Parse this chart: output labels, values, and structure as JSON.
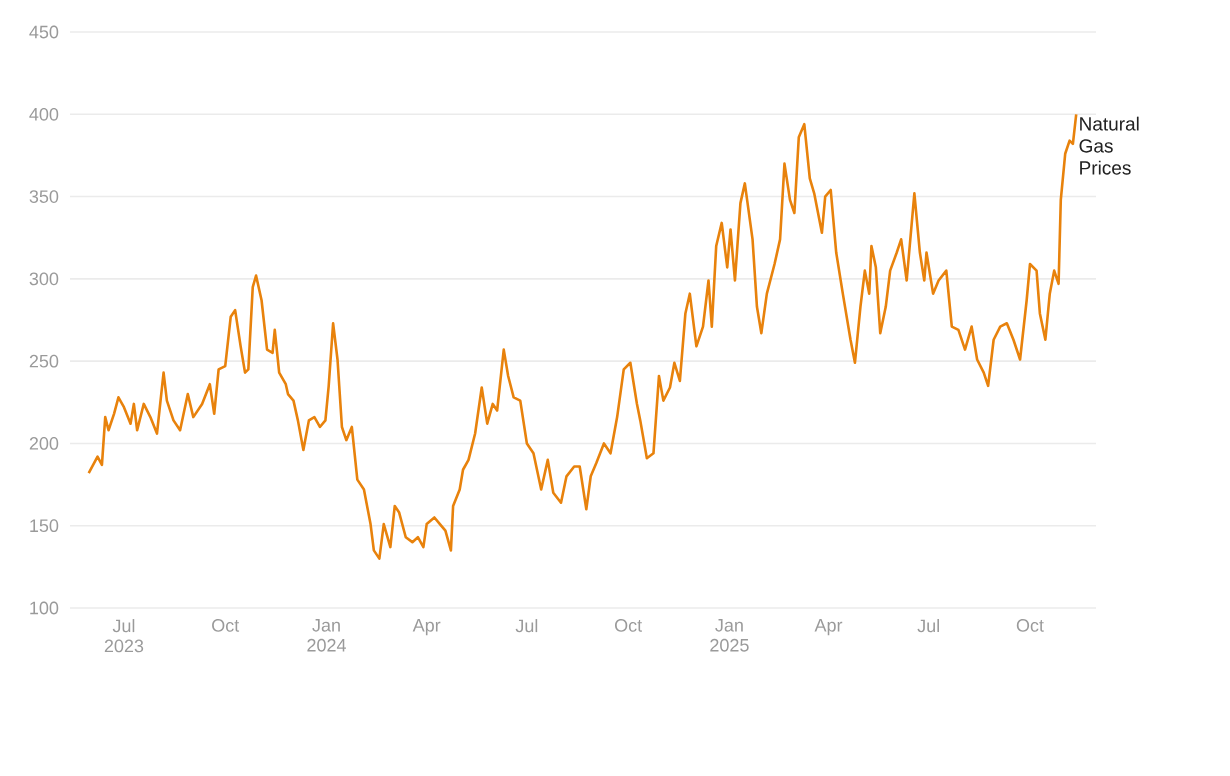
{
  "chart_data": {
    "type": "line",
    "grid": "y",
    "ylim": [
      100,
      450
    ],
    "yticks": [
      100,
      150,
      200,
      250,
      300,
      350,
      400,
      450
    ],
    "xlim": [
      "2023-05-13",
      "2025-11-30"
    ],
    "xticks": [
      {
        "value": "2023-07-01",
        "label": "Jul 2023"
      },
      {
        "value": "2023-10-01",
        "label": "Oct"
      },
      {
        "value": "2024-01-01",
        "label": "Jan 2024"
      },
      {
        "value": "2024-04-01",
        "label": "Apr"
      },
      {
        "value": "2024-07-01",
        "label": "Jul"
      },
      {
        "value": "2024-10-01",
        "label": "Oct"
      },
      {
        "value": "2025-01-01",
        "label": "Jan 2025"
      },
      {
        "value": "2025-04-01",
        "label": "Apr"
      },
      {
        "value": "2025-07-01",
        "label": "Jul"
      },
      {
        "value": "2025-10-01",
        "label": "Oct"
      }
    ],
    "series": [
      {
        "name": "Natural Gas Prices",
        "color": "#e8820c",
        "x": [
          "2023-05-30",
          "2023-06-07",
          "2023-06-11",
          "2023-06-14",
          "2023-06-17",
          "2023-06-22",
          "2023-06-26",
          "2023-07-01",
          "2023-07-07",
          "2023-07-10",
          "2023-07-13",
          "2023-07-19",
          "2023-07-25",
          "2023-07-31",
          "2023-08-06",
          "2023-08-09",
          "2023-08-15",
          "2023-08-21",
          "2023-08-28",
          "2023-09-02",
          "2023-09-10",
          "2023-09-17",
          "2023-09-21",
          "2023-09-25",
          "2023-10-01",
          "2023-10-06",
          "2023-10-10",
          "2023-10-15",
          "2023-10-19",
          "2023-10-22",
          "2023-10-26",
          "2023-10-29",
          "2023-11-03",
          "2023-11-08",
          "2023-11-13",
          "2023-11-15",
          "2023-11-19",
          "2023-11-25",
          "2023-11-27",
          "2023-12-02",
          "2023-12-06",
          "2023-12-11",
          "2023-12-16",
          "2023-12-21",
          "2023-12-26",
          "2023-12-31",
          "2024-01-03",
          "2024-01-07",
          "2024-01-11",
          "2024-01-15",
          "2024-01-19",
          "2024-01-24",
          "2024-01-29",
          "2024-02-04",
          "2024-02-10",
          "2024-02-13",
          "2024-02-18",
          "2024-02-22",
          "2024-02-28",
          "2024-03-03",
          "2024-03-07",
          "2024-03-13",
          "2024-03-19",
          "2024-03-24",
          "2024-03-29",
          "2024-04-01",
          "2024-04-08",
          "2024-04-13",
          "2024-04-18",
          "2024-04-23",
          "2024-04-25",
          "2024-05-01",
          "2024-05-04",
          "2024-05-09",
          "2024-05-15",
          "2024-05-21",
          "2024-05-26",
          "2024-05-31",
          "2024-06-04",
          "2024-06-10",
          "2024-06-14",
          "2024-06-19",
          "2024-06-25",
          "2024-07-01",
          "2024-07-07",
          "2024-07-14",
          "2024-07-20",
          "2024-07-25",
          "2024-08-01",
          "2024-08-06",
          "2024-08-13",
          "2024-08-18",
          "2024-08-24",
          "2024-08-28",
          "2024-09-02",
          "2024-09-09",
          "2024-09-15",
          "2024-09-21",
          "2024-09-27",
          "2024-10-03",
          "2024-10-09",
          "2024-10-12",
          "2024-10-18",
          "2024-10-24",
          "2024-10-29",
          "2024-11-02",
          "2024-11-08",
          "2024-11-12",
          "2024-11-17",
          "2024-11-22",
          "2024-11-26",
          "2024-12-02",
          "2024-12-08",
          "2024-12-13",
          "2024-12-16",
          "2024-12-20",
          "2024-12-25",
          "2024-12-30",
          "2025-01-02",
          "2025-01-06",
          "2025-01-11",
          "2025-01-15",
          "2025-01-22",
          "2025-01-26",
          "2025-01-30",
          "2025-02-04",
          "2025-02-11",
          "2025-02-16",
          "2025-02-20",
          "2025-02-25",
          "2025-03-01",
          "2025-03-05",
          "2025-03-10",
          "2025-03-15",
          "2025-03-19",
          "2025-03-26",
          "2025-03-29",
          "2025-04-03",
          "2025-04-08",
          "2025-04-14",
          "2025-04-21",
          "2025-04-25",
          "2025-04-30",
          "2025-05-04",
          "2025-05-08",
          "2025-05-10",
          "2025-05-14",
          "2025-05-18",
          "2025-05-23",
          "2025-05-27",
          "2025-06-02",
          "2025-06-06",
          "2025-06-11",
          "2025-06-18",
          "2025-06-23",
          "2025-06-27",
          "2025-06-29",
          "2025-07-05",
          "2025-07-10",
          "2025-07-17",
          "2025-07-22",
          "2025-07-28",
          "2025-08-03",
          "2025-08-09",
          "2025-08-14",
          "2025-08-20",
          "2025-08-24",
          "2025-08-29",
          "2025-09-04",
          "2025-09-10",
          "2025-09-16",
          "2025-09-22",
          "2025-09-28",
          "2025-10-01",
          "2025-10-07",
          "2025-10-10",
          "2025-10-15",
          "2025-10-19",
          "2025-10-23",
          "2025-10-27",
          "2025-10-29",
          "2025-11-02",
          "2025-11-06",
          "2025-11-09",
          "2025-11-12"
        ],
        "values": [
          182,
          192,
          187,
          216,
          208,
          218,
          228,
          222,
          212,
          224,
          208,
          224,
          216,
          206,
          243,
          226,
          214,
          208,
          230,
          216,
          224,
          236,
          218,
          245,
          247,
          277,
          281,
          259,
          243,
          245,
          295,
          302,
          287,
          257,
          255,
          269,
          243,
          236,
          230,
          226,
          214,
          196,
          214,
          216,
          210,
          214,
          235,
          273,
          251,
          210,
          202,
          210,
          178,
          172,
          151,
          135,
          130,
          151,
          137,
          162,
          158,
          143,
          140,
          143,
          137,
          151,
          155,
          151,
          147,
          135,
          162,
          172,
          184,
          190,
          206,
          234,
          212,
          224,
          220,
          257,
          241,
          228,
          226,
          200,
          194,
          172,
          190,
          170,
          164,
          180,
          186,
          186,
          160,
          180,
          188,
          200,
          194,
          216,
          245,
          249,
          224,
          214,
          191,
          194,
          241,
          226,
          234,
          249,
          238,
          279,
          291,
          259,
          271,
          299,
          271,
          320,
          334,
          307,
          330,
          299,
          346,
          358,
          324,
          283,
          267,
          291,
          309,
          324,
          370,
          348,
          340,
          386,
          394,
          361,
          352,
          328,
          350,
          354,
          316,
          291,
          263,
          249,
          283,
          305,
          291,
          320,
          307,
          267,
          283,
          305,
          316,
          324,
          299,
          352,
          316,
          299,
          316,
          291,
          299,
          305,
          271,
          269,
          257,
          271,
          251,
          243,
          235,
          263,
          271,
          273,
          263,
          251,
          287,
          309,
          305,
          279,
          263,
          291,
          305,
          297,
          348,
          376,
          384,
          382,
          400
        ]
      }
    ]
  }
}
